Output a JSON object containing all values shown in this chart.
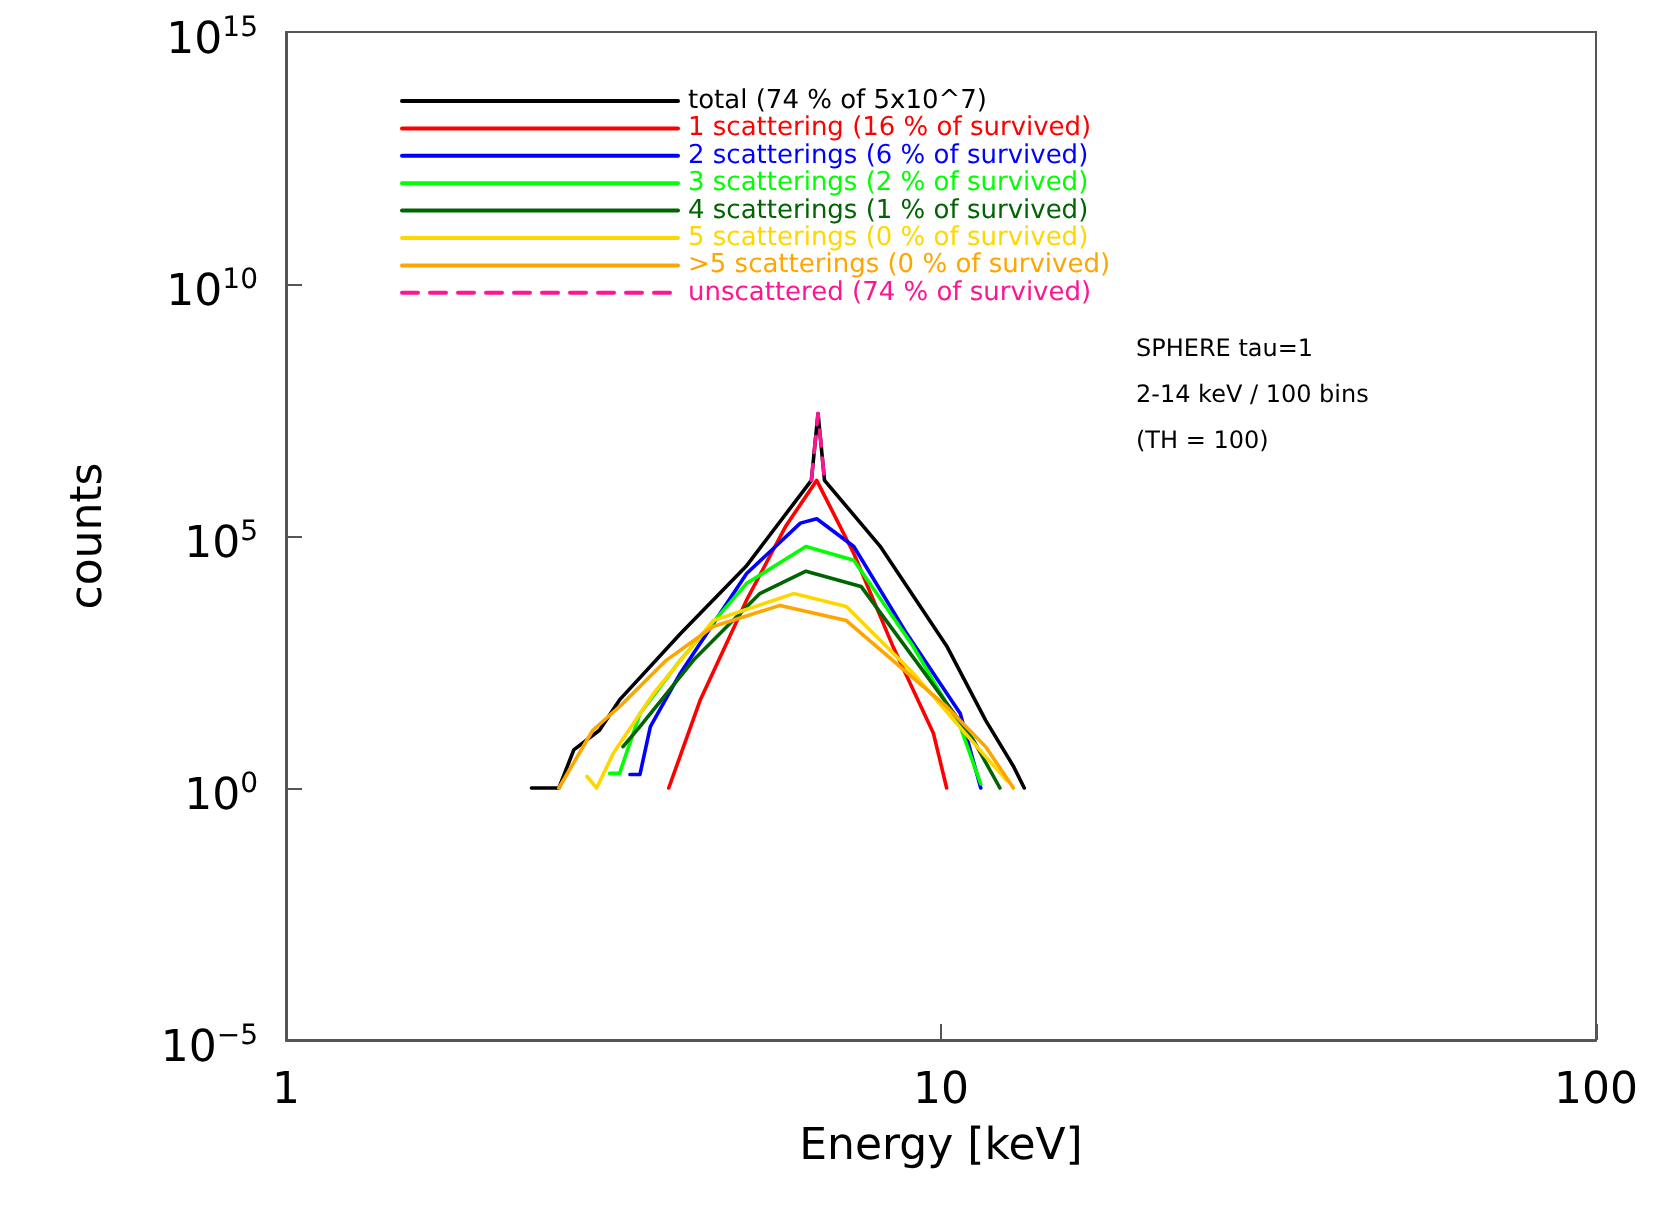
{
  "chart_data": {
    "type": "line",
    "xlabel": "Energy [keV]",
    "ylabel": "counts",
    "log": "xy",
    "grid": false,
    "legend": "top left",
    "marker": "none",
    "xlim": [
      1,
      100
    ],
    "xticks": [
      1,
      10,
      100
    ],
    "ylim": [
      1e-05,
      1000000000000000.0
    ],
    "yticks": [
      {
        "value": 1e-05,
        "label": "10$^{−5}$"
      },
      {
        "value": 1,
        "label": "10$^{0}$"
      },
      {
        "value": 100000.0,
        "label": "10$^{5}$"
      },
      {
        "value": 10000000000.0,
        "label": "10$^{10}$"
      },
      {
        "value": 1000000000000000.0,
        "label": "10$^{15}$"
      }
    ],
    "annotations": [
      "SPHERE tau=1",
      "2-14 keV / 100 bins",
      "(TH = 100)"
    ],
    "series": [
      {
        "name": "total (74 % of 5x10^7)",
        "color": "#000000",
        "x": [
          2.37,
          2.61,
          2.75,
          3.01,
          3.23,
          4.0,
          5.04,
          6.34,
          6.49,
          6.64,
          8.07,
          10.2,
          11.7,
          12.9,
          13.4
        ],
        "values": [
          1,
          1,
          5.7,
          14,
          56,
          1150,
          25000,
          1270000,
          27000000,
          1270000,
          63000,
          660,
          22,
          2.7,
          1
        ]
      },
      {
        "name": "1 scattering (16 % of survived)",
        "color": "#ff0000",
        "x": [
          3.84,
          4.29,
          5.05,
          5.8,
          6.46,
          7.36,
          8.44,
          9.74,
          10.2
        ],
        "values": [
          1,
          56,
          5400,
          160000,
          1270000,
          45000,
          660,
          12,
          1
        ]
      },
      {
        "name": "2 scatterings (6 % of survived)",
        "color": "#0000ff",
        "x": [
          3.35,
          3.47,
          3.6,
          4.0,
          5.05,
          6.1,
          6.46,
          7.36,
          8.86,
          10.7,
          11.5
        ],
        "values": [
          1.85,
          1.85,
          16.5,
          190,
          18000,
          180000,
          220000,
          62000,
          1170,
          30,
          1
        ]
      },
      {
        "name": "3 scatterings (2 % of survived)",
        "color": "#00ff00",
        "x": [
          3.12,
          3.23,
          3.47,
          4.0,
          5.05,
          6.22,
          7.36,
          9.07,
          10.7,
          11.5
        ],
        "values": [
          1.95,
          1.95,
          30,
          345,
          11500,
          62000,
          33000,
          640,
          16.5,
          1.2
        ]
      },
      {
        "name": "4 scatterings (1 % of survived)",
        "color": "#006400",
        "x": [
          3.27,
          3.47,
          4.19,
          5.29,
          6.22,
          7.55,
          9.3,
          11.2,
          12.3
        ],
        "values": [
          6.6,
          16.5,
          345,
          7200,
          20000,
          10000,
          250,
          9,
          1
        ]
      },
      {
        "name": "5 scatterings (0 % of survived)",
        "color": "#ffd700",
        "x": [
          2.88,
          2.98,
          3.16,
          3.64,
          4.49,
          5.96,
          7.17,
          9.07,
          10.9,
          12.6
        ],
        "values": [
          1.7,
          1,
          4.9,
          75,
          2100,
          7200,
          4000,
          190,
          12,
          1.4
        ]
      },
      {
        "name": ">5 scatterings (0 % of survived)",
        "color": "#ffa500",
        "x": [
          2.61,
          2.94,
          3.23,
          3.81,
          4.49,
          5.68,
          7.17,
          10.2,
          11.7,
          12.9
        ],
        "values": [
          1,
          14,
          41,
          345,
          1600,
          4200,
          2100,
          41,
          6.6,
          1
        ]
      },
      {
        "name": "unscattered (74 % of survived)",
        "color": "#ff1493",
        "line_style": "dashed",
        "x": [
          6.34,
          6.49,
          6.64
        ],
        "values": [
          1270000,
          27000000,
          1270000
        ]
      }
    ]
  }
}
